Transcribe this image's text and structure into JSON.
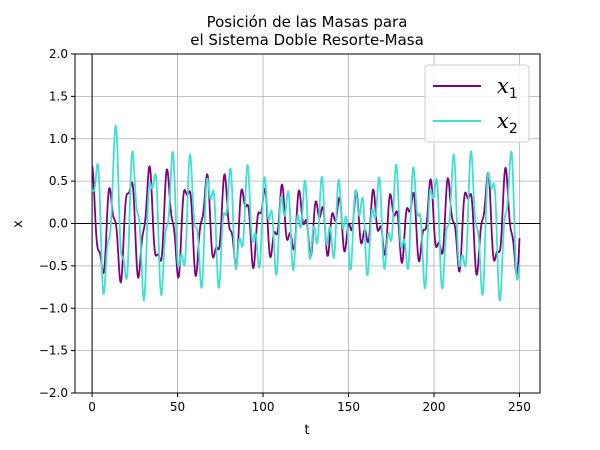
{
  "chart_data": {
    "type": "line",
    "title_line1": "Posición de las Masas para",
    "title_line2": "el Sistema Doble Resorte-Masa",
    "xlabel": "t",
    "ylabel": "x",
    "xlim": [
      -10,
      262
    ],
    "ylim": [
      -2.0,
      2.0
    ],
    "xticks": [
      0,
      50,
      100,
      150,
      200,
      250
    ],
    "xtick_labels": [
      "0",
      "50",
      "100",
      "150",
      "200",
      "250"
    ],
    "yticks": [
      -2.0,
      -1.5,
      -1.0,
      -0.5,
      0.0,
      0.5,
      1.0,
      1.5,
      2.0
    ],
    "ytick_labels": [
      "−2.0",
      "−1.5",
      "−1.0",
      "−0.5",
      "0.0",
      "0.5",
      "1.0",
      "1.5",
      "2.0"
    ],
    "grid": true,
    "zero_lines": true,
    "legend_position": "top-right",
    "t_range": [
      0,
      250
    ],
    "series": [
      {
        "name": "x1",
        "legend_main": "x",
        "legend_sub": "1",
        "color": "#800080",
        "terms": [
          {
            "amp": 0.38,
            "freq": 0.57,
            "phase": 0.0
          },
          {
            "amp": 0.16,
            "freq": 0.545,
            "phase": 0.5
          },
          {
            "amp": 0.16,
            "freq": 1.3,
            "phase": 0.0
          }
        ],
        "transient": {
          "amp": -0.2,
          "center": 10,
          "width": 3.5
        }
      },
      {
        "name": "x2",
        "legend_main": "x",
        "legend_sub": "2",
        "color": "#40e0d0",
        "terms": [
          {
            "amp": 0.5,
            "freq": 0.57,
            "phase": -1.2
          },
          {
            "amp": 0.2,
            "freq": 0.545,
            "phase": -1.0
          },
          {
            "amp": 0.25,
            "freq": 1.3,
            "phase": 1.2
          }
        ],
        "transient": {
          "amp": 0.45,
          "center": 15,
          "width": 1.6
        }
      }
    ]
  }
}
